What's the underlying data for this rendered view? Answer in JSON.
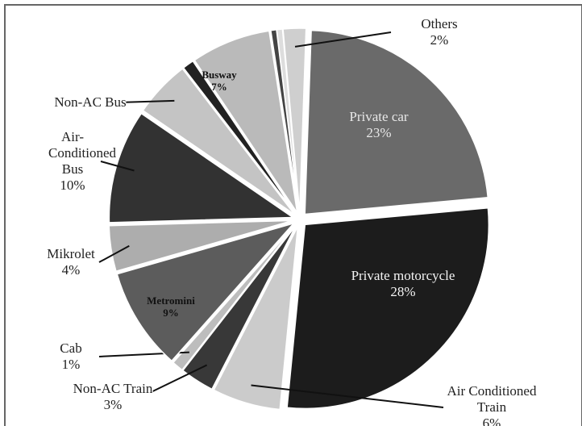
{
  "chart_data": {
    "type": "pie",
    "categories": [
      "Private car",
      "Private motorcycle",
      "Air Conditioned Train",
      "Non-AC Train",
      "Cab",
      "Metromini",
      "Mikrolet",
      "Air-Conditioned Bus",
      "Non-AC Bus",
      null,
      "Busway",
      null,
      null,
      "Others"
    ],
    "values": [
      23,
      28,
      6,
      3,
      1,
      9,
      4,
      10,
      5,
      1,
      7,
      0.5,
      0.5,
      2
    ],
    "value_labels": [
      "23%",
      "28%",
      "6%",
      "3%",
      "1%",
      "9%",
      "4%",
      "10%",
      null,
      null,
      "7%",
      null,
      null,
      "2%"
    ],
    "colors": [
      "#6a6a6a",
      "#1c1c1c",
      "#cbcbcb",
      "#383838",
      "#bdbdbd",
      "#5c5c5c",
      "#adadad",
      "#323232",
      "#c4c4c4",
      "#222222",
      "#bababa",
      "#444444",
      "#dddddd",
      "#cfcfcf"
    ]
  }
}
